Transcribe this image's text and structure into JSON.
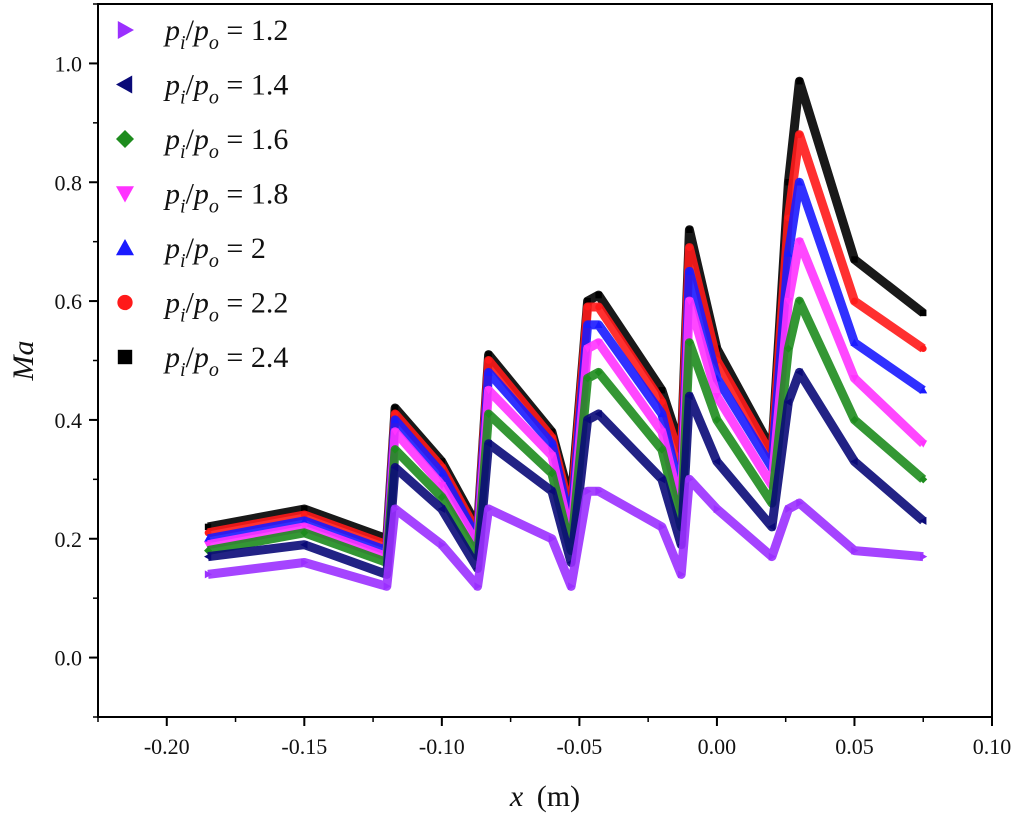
{
  "chart_data": {
    "type": "scatter",
    "title": "",
    "xlabel": "x (m)",
    "xlabel_var": "x",
    "xlabel_unit": "(m)",
    "ylabel": "Ma",
    "xlim": [
      -0.225,
      0.1
    ],
    "ylim": [
      -0.1,
      1.1
    ],
    "x_ticks": [
      -0.2,
      -0.15,
      -0.1,
      -0.05,
      0.0,
      0.05,
      0.1
    ],
    "x_tick_labels": [
      "-0.20",
      "-0.15",
      "-0.10",
      "-0.05",
      "0.00",
      "0.05",
      "0.10"
    ],
    "y_ticks": [
      0.0,
      0.2,
      0.4,
      0.6,
      0.8,
      1.0
    ],
    "y_tick_labels": [
      "0.0",
      "0.2",
      "0.4",
      "0.6",
      "0.8",
      "1.0"
    ],
    "grid": false,
    "legend_position": "top-left",
    "series": [
      {
        "name": "p_i/p_o = 1.2",
        "ratio": "1.2",
        "marker": "triangle-right",
        "color": "#9b30ff",
        "x": [
          -0.185,
          -0.15,
          -0.12,
          -0.117,
          -0.1,
          -0.087,
          -0.083,
          -0.06,
          -0.053,
          -0.047,
          -0.043,
          -0.02,
          -0.013,
          -0.01,
          0.0,
          0.02,
          0.026,
          0.03,
          0.05,
          0.075
        ],
        "y": [
          0.14,
          0.16,
          0.12,
          0.25,
          0.19,
          0.12,
          0.25,
          0.2,
          0.12,
          0.28,
          0.28,
          0.22,
          0.14,
          0.3,
          0.25,
          0.17,
          0.25,
          0.26,
          0.18,
          0.17
        ]
      },
      {
        "name": "p_i/p_o = 1.4",
        "ratio": "1.4",
        "marker": "triangle-left",
        "color": "#0a0a78",
        "x": [
          -0.185,
          -0.15,
          -0.12,
          -0.117,
          -0.1,
          -0.087,
          -0.083,
          -0.06,
          -0.053,
          -0.047,
          -0.043,
          -0.02,
          -0.013,
          -0.01,
          0.0,
          0.02,
          0.026,
          0.03,
          0.05,
          0.075
        ],
        "y": [
          0.17,
          0.19,
          0.14,
          0.32,
          0.25,
          0.15,
          0.36,
          0.28,
          0.16,
          0.4,
          0.41,
          0.3,
          0.19,
          0.44,
          0.33,
          0.22,
          0.43,
          0.48,
          0.33,
          0.23
        ]
      },
      {
        "name": "p_i/p_o = 1.6",
        "ratio": "1.6",
        "marker": "diamond",
        "color": "#1e8c1e",
        "x": [
          -0.185,
          -0.15,
          -0.12,
          -0.117,
          -0.1,
          -0.087,
          -0.083,
          -0.06,
          -0.053,
          -0.047,
          -0.043,
          -0.02,
          -0.013,
          -0.01,
          0.0,
          0.02,
          0.026,
          0.03,
          0.05,
          0.075
        ],
        "y": [
          0.18,
          0.21,
          0.16,
          0.35,
          0.27,
          0.17,
          0.41,
          0.31,
          0.18,
          0.47,
          0.48,
          0.35,
          0.22,
          0.53,
          0.4,
          0.26,
          0.52,
          0.6,
          0.4,
          0.3
        ]
      },
      {
        "name": "p_i/p_o = 1.8",
        "ratio": "1.8",
        "marker": "triangle-down",
        "color": "#ff33ff",
        "x": [
          -0.185,
          -0.15,
          -0.12,
          -0.117,
          -0.1,
          -0.087,
          -0.083,
          -0.06,
          -0.053,
          -0.047,
          -0.043,
          -0.02,
          -0.013,
          -0.01,
          0.0,
          0.02,
          0.026,
          0.03,
          0.05,
          0.075
        ],
        "y": [
          0.19,
          0.22,
          0.17,
          0.38,
          0.29,
          0.19,
          0.45,
          0.34,
          0.2,
          0.52,
          0.53,
          0.38,
          0.25,
          0.6,
          0.44,
          0.29,
          0.6,
          0.7,
          0.47,
          0.36
        ]
      },
      {
        "name": "p_i/p_o = 2",
        "ratio": "2",
        "marker": "triangle-up",
        "color": "#1a1aff",
        "x": [
          -0.185,
          -0.15,
          -0.12,
          -0.117,
          -0.1,
          -0.087,
          -0.083,
          -0.06,
          -0.053,
          -0.047,
          -0.043,
          -0.02,
          -0.013,
          -0.01,
          0.0,
          0.02,
          0.026,
          0.03,
          0.05,
          0.075
        ],
        "y": [
          0.2,
          0.23,
          0.18,
          0.4,
          0.31,
          0.2,
          0.48,
          0.36,
          0.22,
          0.56,
          0.56,
          0.41,
          0.27,
          0.65,
          0.47,
          0.32,
          0.68,
          0.8,
          0.53,
          0.45
        ]
      },
      {
        "name": "p_i/p_o = 2.2",
        "ratio": "2.2",
        "marker": "circle",
        "color": "#ff1a1a",
        "x": [
          -0.185,
          -0.15,
          -0.12,
          -0.117,
          -0.1,
          -0.087,
          -0.083,
          -0.06,
          -0.053,
          -0.047,
          -0.043,
          -0.02,
          -0.013,
          -0.01,
          0.0,
          0.02,
          0.026,
          0.03,
          0.05,
          0.075
        ],
        "y": [
          0.21,
          0.24,
          0.19,
          0.41,
          0.32,
          0.21,
          0.5,
          0.37,
          0.24,
          0.59,
          0.59,
          0.43,
          0.33,
          0.69,
          0.5,
          0.34,
          0.74,
          0.88,
          0.6,
          0.52
        ]
      },
      {
        "name": "p_i/p_o = 2.4",
        "ratio": "2.4",
        "marker": "square",
        "color": "#000000",
        "x": [
          -0.185,
          -0.15,
          -0.12,
          -0.117,
          -0.1,
          -0.087,
          -0.083,
          -0.06,
          -0.053,
          -0.047,
          -0.043,
          -0.02,
          -0.013,
          -0.01,
          0.0,
          0.02,
          0.026,
          0.03,
          0.05,
          0.075
        ],
        "y": [
          0.22,
          0.25,
          0.2,
          0.42,
          0.33,
          0.22,
          0.51,
          0.38,
          0.26,
          0.6,
          0.61,
          0.45,
          0.35,
          0.72,
          0.52,
          0.35,
          0.8,
          0.97,
          0.67,
          0.58
        ]
      }
    ]
  }
}
